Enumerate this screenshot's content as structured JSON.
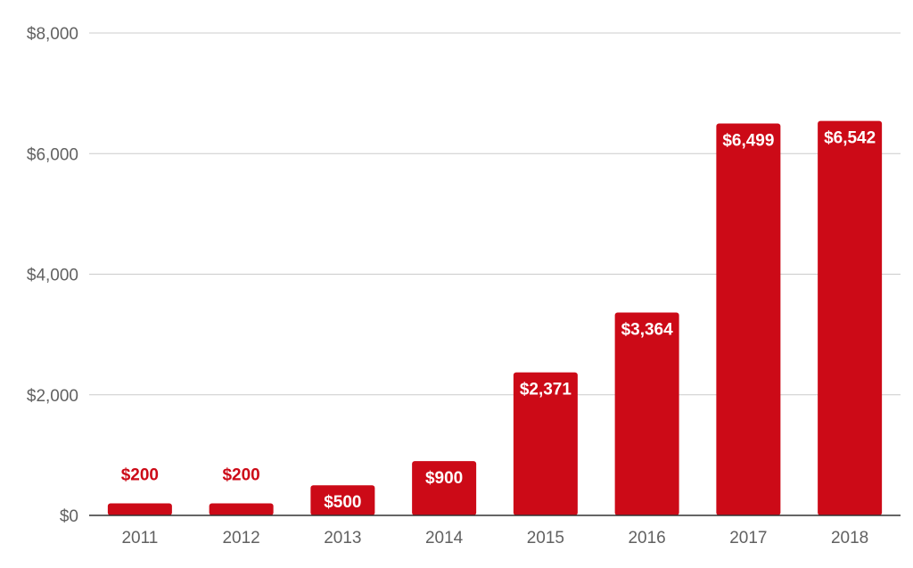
{
  "chart_data": {
    "type": "bar",
    "categories": [
      "2011",
      "2012",
      "2013",
      "2014",
      "2015",
      "2016",
      "2017",
      "2018"
    ],
    "values": [
      200,
      200,
      500,
      900,
      2371,
      3364,
      6499,
      6542
    ],
    "data_labels": [
      "$200",
      "$200",
      "$500",
      "$900",
      "$2,371",
      "$3,364",
      "$6,499",
      "$6,542"
    ],
    "title": "",
    "xlabel": "",
    "ylabel": "",
    "ylim": [
      0,
      8000
    ],
    "y_ticks": [
      0,
      2000,
      4000,
      6000,
      8000
    ],
    "y_tick_labels": [
      "$0",
      "$2,000",
      "$4,000",
      "$6,000",
      "$8,000"
    ],
    "grid": true,
    "legend": "none",
    "colors": {
      "bar": "#cc0a17",
      "label_inside": "#ffffff",
      "label_outside": "#cc0a17",
      "gridline": "#cccccc",
      "axis": "#333333",
      "tick_text": "#616161"
    }
  }
}
